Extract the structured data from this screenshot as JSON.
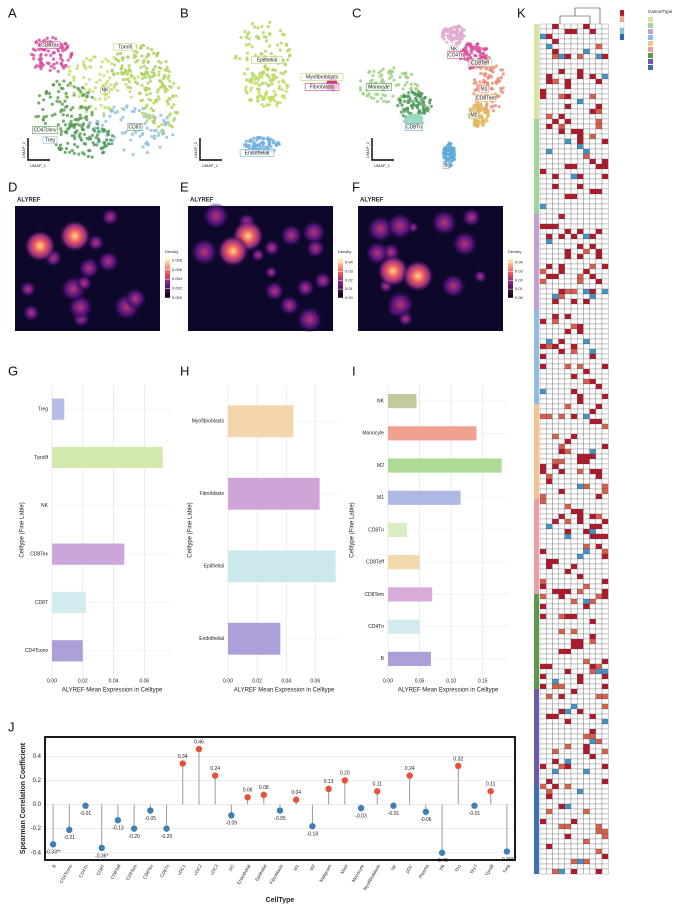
{
  "panel_labels": [
    "A",
    "B",
    "C",
    "D",
    "E",
    "F",
    "G",
    "H",
    "I",
    "J",
    "K"
  ],
  "umap": {
    "x_label": "UMAP_1",
    "y_label": "UMAP_2",
    "A": [
      "CD8Tex",
      "Tprolif",
      "NK",
      "CD4Tconv",
      "Treg",
      "CD8T"
    ],
    "B": [
      "Epithelial",
      "Myofibroblasts",
      "Fibroblasts",
      "Endothelial"
    ],
    "C": [
      "NK",
      "CD4Tn",
      "CD8Teff",
      "Monocyte",
      "M1",
      "CD8Tem",
      "M2",
      "CD8Tn",
      "B"
    ]
  },
  "density": [
    {
      "title": "ALYREF",
      "legend_title": "Density",
      "lim": [
        0,
        0.0085
      ],
      "ticks": [
        {
          "value": 0.008,
          "label": "0.008"
        },
        {
          "value": 0.006,
          "label": "0.006"
        },
        {
          "value": 0.004,
          "label": "0.004"
        },
        {
          "value": 0.002,
          "label": "0.002"
        },
        {
          "value": 0,
          "label": "0.000"
        }
      ]
    },
    {
      "title": "ALYREF",
      "legend_title": "Density",
      "lim": [
        0,
        0.045
      ],
      "ticks": [
        {
          "value": 0.04,
          "label": "0.04"
        },
        {
          "value": 0.03,
          "label": "0.03"
        },
        {
          "value": 0.02,
          "label": "0.02"
        },
        {
          "value": 0.01,
          "label": "0.01"
        },
        {
          "value": 0,
          "label": "0.00"
        }
      ]
    },
    {
      "title": "ALYREF",
      "legend_title": "Density",
      "lim": [
        0,
        0.045
      ],
      "ticks": [
        {
          "value": 0.04,
          "label": "0.04"
        },
        {
          "value": 0.03,
          "label": "0.03"
        },
        {
          "value": 0.02,
          "label": "0.02"
        },
        {
          "value": 0.01,
          "label": "0.01"
        },
        {
          "value": 0,
          "label": "0.00"
        }
      ]
    }
  ],
  "heatmap": {
    "legend_title": "CancerType"
  },
  "chart_data": [
    {
      "type": "hbar",
      "x_label": "ALYREF Mean Expression in Celltype",
      "y_label": "Celltype (Fine Lable)",
      "categories": [
        "Treg",
        "Tprolif",
        "NK",
        "CD8Tex",
        "CD8T",
        "CD4Tconv"
      ],
      "values": [
        0.008,
        0.072,
        0,
        0.047,
        0.022,
        0.02
      ],
      "colors": [
        "#b3bde6",
        "#d3e9ae",
        "#dddddd",
        "#cba6da",
        "#d1ebee",
        "#ad9fd9"
      ],
      "xlim": [
        0,
        0.078
      ],
      "xticks": [
        {
          "value": 0,
          "label": "0.00"
        },
        {
          "value": 0.02,
          "label": "0.02"
        },
        {
          "value": 0.04,
          "label": "0.04"
        },
        {
          "value": 0.06,
          "label": "0.06"
        }
      ],
      "grid": true
    },
    {
      "type": "hbar",
      "x_label": "ALYREF Mean Expression in Celltype",
      "y_label": "Celltype (Fine Lable)",
      "categories": [
        "Myofibroblasts",
        "Fibroblasts",
        "Epithelial",
        "Endothelial"
      ],
      "values": [
        0.045,
        0.063,
        0.074,
        0.036
      ],
      "colors": [
        "#f3d6ab",
        "#cda5d6",
        "#cbe9ec",
        "#ad9fd9"
      ],
      "xlim": [
        0,
        0.077
      ],
      "xticks": [
        {
          "value": 0,
          "label": "0.00"
        },
        {
          "value": 0.02,
          "label": "0.02"
        },
        {
          "value": 0.04,
          "label": "0.04"
        },
        {
          "value": 0.06,
          "label": "0.06"
        }
      ],
      "grid": true
    },
    {
      "type": "hbar",
      "x_label": "ALYREF Mean Expression in Celltype",
      "y_label": "Celltype (Fine Lable)",
      "categories": [
        "NK",
        "Monocyte",
        "M2",
        "M1",
        "CD8Tn",
        "CD8Teff",
        "CD8Tem",
        "CD4Tn",
        "B"
      ],
      "values": [
        0.045,
        0.14,
        0.18,
        0.115,
        0.03,
        0.05,
        0.07,
        0.05,
        0.068
      ],
      "colors": [
        "#c5c99e",
        "#ef a290",
        "#add a94",
        "#adb9e3",
        "#d8eec3",
        "#f3d8ab",
        "#d8abd9",
        "#d1ebee",
        "#ad9fd9"
      ],
      "xlim": [
        0,
        0.19
      ],
      "xticks": [
        {
          "value": 0,
          "label": "0.00"
        },
        {
          "value": 0.05,
          "label": "0.05"
        },
        {
          "value": 0.1,
          "label": "0.10"
        },
        {
          "value": 0.15,
          "label": "0.15"
        }
      ],
      "grid": true
    },
    {
      "type": "lollipop",
      "x_label": "CellType",
      "y_label": "Spearman Correlation Coefficient",
      "categories": [
        "B",
        "CD4Tconv",
        "CD4Tn",
        "CD8T",
        "CD8Teff",
        "CD8Tem",
        "CD8Tex",
        "CD8Tn",
        "cDC1",
        "cDC2",
        "cDC3",
        "DC",
        "Endothelial",
        "Epithelial",
        "Fibroblasts",
        "M1",
        "M2",
        "Malignant",
        "Mast",
        "Monocyte",
        "Myofibroblasts",
        "NK",
        "pDC",
        "Plasma",
        "Tfh",
        "Th1",
        "Th17",
        "Tprolif",
        "Treg"
      ],
      "values": [
        -0.33,
        -0.21,
        -0.01,
        -0.36,
        -0.13,
        -0.2,
        -0.05,
        -0.2,
        0.34,
        0.46,
        0.24,
        -0.09,
        0.06,
        0.08,
        -0.05,
        0.04,
        -0.18,
        0.13,
        0.2,
        -0.03,
        0.11,
        -0.01,
        0.24,
        -0.06,
        -0.4,
        0.32,
        -0.01,
        0.11,
        -0.39
      ],
      "value_labels": [
        "-0.33**",
        "-0.21",
        "-0.01",
        "-0.36*",
        "-0.13",
        "-0.20",
        "-0.05",
        "-0.20",
        "0.34",
        "0.46",
        "0.24",
        "-0.09",
        "0.06",
        "0.08",
        "-0.05",
        "0.04",
        "-0.18",
        "0.13",
        "0.20",
        "-0.03",
        "0.11",
        "-0.01",
        "0.24",
        "-0.06",
        "-0.40",
        "0.32",
        "-0.01",
        "0.11",
        "-0.39*"
      ],
      "positive_color": "#e9503a",
      "negative_color": "#3f7fb5",
      "ylim": [
        -0.46,
        0.56
      ],
      "yticks": [
        {
          "value": -0.4,
          "label": "-0.4"
        },
        {
          "value": -0.2,
          "label": "-0.2"
        },
        {
          "value": 0,
          "label": "0.0"
        },
        {
          "value": 0.2,
          "label": "0.2"
        },
        {
          "value": 0.4,
          "label": "0.4"
        }
      ],
      "grid": true
    }
  ]
}
